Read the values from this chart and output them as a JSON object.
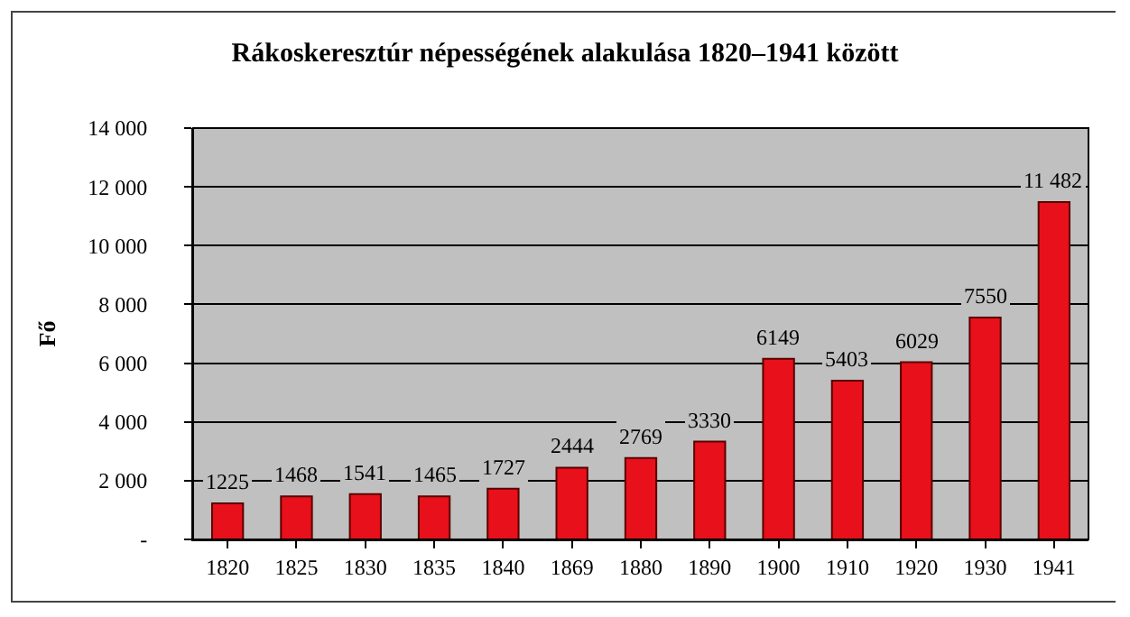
{
  "chart_data": {
    "type": "bar",
    "title": "Rákoskeresztúr népességének alakulása 1820–1941 között",
    "ylabel": "Fő",
    "categories": [
      "1820",
      "1825",
      "1830",
      "1835",
      "1840",
      "1869",
      "1880",
      "1890",
      "1900",
      "1910",
      "1920",
      "1930",
      "1941"
    ],
    "values": [
      1225,
      1468,
      1541,
      1465,
      1727,
      2444,
      2769,
      3330,
      6149,
      5403,
      6029,
      7550,
      11482
    ],
    "value_labels": [
      "1225",
      "1468",
      "1541",
      "1465",
      "1727",
      "2444",
      "2769",
      "3330",
      "6149",
      "5403",
      "6029",
      "7550",
      "11 482"
    ],
    "color": "#e8101a",
    "ylim": [
      0,
      14000
    ],
    "yticks": [
      {
        "value": 0,
        "label": "-"
      },
      {
        "value": 2000,
        "label": "2 000"
      },
      {
        "value": 4000,
        "label": "4 000"
      },
      {
        "value": 6000,
        "label": "6 000"
      },
      {
        "value": 8000,
        "label": "8 000"
      },
      {
        "value": 10000,
        "label": "10 000"
      },
      {
        "value": 12000,
        "label": "12 000"
      },
      {
        "value": 14000,
        "label": "14 000"
      }
    ],
    "grid": "y"
  }
}
